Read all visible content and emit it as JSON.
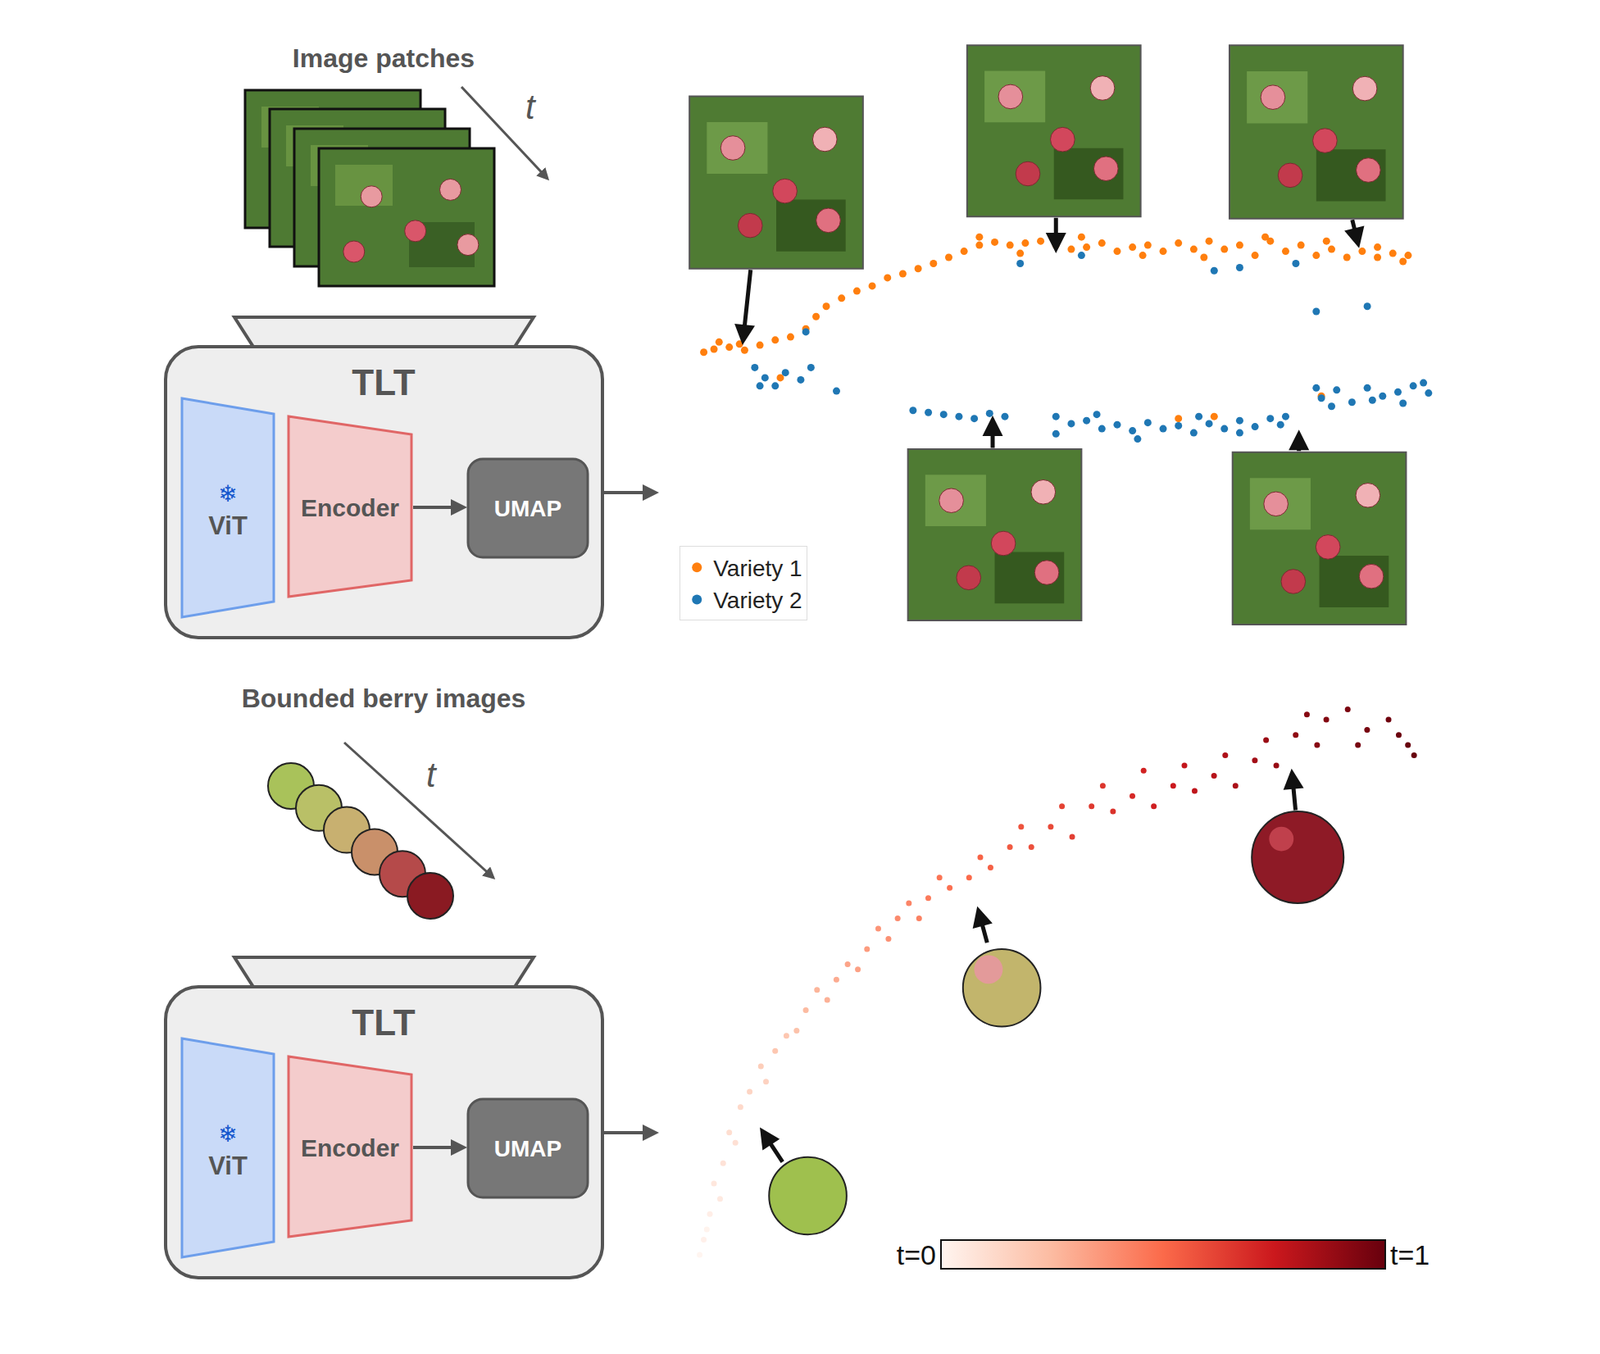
{
  "diagram": {
    "panels": [
      {
        "input": {
          "title": "Image patches",
          "time_label": "t"
        },
        "model": {
          "title": "TLT",
          "frozen_icon": "❄",
          "backbone": "ViT",
          "encoder": "Encoder",
          "projection": "UMAP"
        }
      },
      {
        "input": {
          "title": "Bounded berry images",
          "time_label": "t"
        },
        "model": {
          "title": "TLT",
          "frozen_icon": "❄",
          "backbone": "ViT",
          "encoder": "Encoder",
          "projection": "UMAP"
        }
      }
    ]
  },
  "chart_data": [
    {
      "type": "scatter",
      "tick_labels": false,
      "grid": false,
      "legend": "lower left",
      "xlim": [
        0,
        762
      ],
      "ylim": [
        0,
        585
      ],
      "series": [
        {
          "name": "Variety 1",
          "color": "#ff7f0e",
          "marker": "circle",
          "x": [
            35,
            45,
            60,
            75,
            90,
            105,
            120,
            135,
            145,
            155,
            170,
            185,
            200,
            215,
            230,
            245,
            260,
            275,
            290,
            305,
            320,
            335,
            350,
            365,
            380,
            395,
            410,
            425,
            440,
            455,
            470,
            485,
            500,
            515,
            530,
            545,
            560,
            575,
            590,
            605,
            620,
            635,
            650,
            665,
            680,
            695,
            710,
            725,
            305,
            345,
            405,
            465,
            525,
            585,
            645,
            695,
            720,
            110,
            500,
            535,
            640,
            50,
            70
          ],
          "y": [
            275,
            278,
            280,
            277,
            282,
            287,
            290,
            298,
            310,
            320,
            328,
            335,
            340,
            348,
            352,
            357,
            362,
            368,
            374,
            380,
            383,
            380,
            382,
            384,
            380,
            376,
            378,
            382,
            374,
            378,
            380,
            374,
            382,
            376,
            384,
            376,
            380,
            370,
            384,
            374,
            380,
            370,
            376,
            368,
            374,
            368,
            372,
            370,
            388,
            372,
            388,
            370,
            368,
            388,
            384,
            378,
            364,
            250,
            210,
            212,
            232,
            285,
            283
          ]
        },
        {
          "name": "Variety 2",
          "color": "#1f77b4",
          "marker": "circle",
          "x": [
            85,
            95,
            105,
            115,
            130,
            140,
            90,
            165,
            135,
            240,
            255,
            270,
            285,
            300,
            315,
            330,
            380,
            395,
            410,
            425,
            440,
            455,
            470,
            485,
            500,
            515,
            530,
            545,
            560,
            575,
            590,
            605,
            380,
            420,
            460,
            520,
            560,
            600,
            640,
            655,
            670,
            685,
            700,
            715,
            730,
            745,
            650,
            690,
            720,
            740,
            635,
            345,
            405,
            535,
            560,
            635,
            685,
            615
          ],
          "y": [
            260,
            250,
            242,
            255,
            248,
            260,
            242,
            237,
            295,
            218,
            216,
            214,
            212,
            210,
            215,
            212,
            212,
            205,
            208,
            200,
            204,
            198,
            206,
            200,
            203,
            196,
            205,
            200,
            208,
            202,
            210,
            212,
            195,
            214,
            190,
            212,
            196,
            204,
            230,
            238,
            226,
            240,
            232,
            236,
            242,
            235,
            222,
            228,
            225,
            245,
            240,
            362,
            370,
            355,
            358,
            315,
            320,
            362
          ]
        }
      ]
    },
    {
      "type": "scatter",
      "tick_labels": false,
      "grid": false,
      "xlim": [
        0,
        767
      ],
      "ylim": [
        0,
        586
      ],
      "color": "Reds",
      "marker": "circle",
      "x": [
        39,
        49,
        64,
        84,
        109,
        139,
        169,
        199,
        229,
        259,
        299,
        339,
        379,
        419,
        459,
        499,
        539,
        579,
        619,
        649,
        689,
        729,
        45,
        58,
        75,
        95,
        120,
        150,
        180,
        210,
        240,
        270,
        310,
        350,
        390,
        430,
        470,
        510,
        550,
        590,
        630,
        670,
        710,
        720,
        100,
        130,
        160,
        190,
        220,
        250,
        280,
        320,
        360,
        400,
        440,
        480,
        520,
        560,
        600,
        640,
        680,
        735,
        35,
        42,
        55,
        70
      ],
      "y": [
        35,
        90,
        140,
        180,
        220,
        260,
        290,
        320,
        350,
        370,
        390,
        420,
        440,
        460,
        470,
        480,
        490,
        505,
        530,
        545,
        535,
        520,
        60,
        110,
        165,
        205,
        235,
        280,
        305,
        340,
        365,
        390,
        410,
        440,
        460,
        480,
        495,
        500,
        510,
        525,
        550,
        555,
        545,
        530,
        190,
        240,
        270,
        300,
        330,
        350,
        380,
        400,
        420,
        430,
        455,
        460,
        475,
        480,
        500,
        520,
        520,
        510,
        20,
        45,
        75,
        130
      ],
      "t": [
        0.02,
        0.06,
        0.1,
        0.14,
        0.2,
        0.25,
        0.3,
        0.35,
        0.4,
        0.45,
        0.5,
        0.55,
        0.6,
        0.65,
        0.7,
        0.75,
        0.8,
        0.85,
        0.9,
        0.93,
        0.96,
        1.0,
        0.03,
        0.08,
        0.12,
        0.17,
        0.2,
        0.27,
        0.32,
        0.37,
        0.42,
        0.47,
        0.52,
        0.57,
        0.62,
        0.66,
        0.72,
        0.77,
        0.82,
        0.87,
        0.92,
        0.95,
        0.98,
        0.99,
        0.15,
        0.22,
        0.28,
        0.33,
        0.38,
        0.43,
        0.48,
        0.53,
        0.58,
        0.63,
        0.67,
        0.73,
        0.78,
        0.83,
        0.88,
        0.92,
        0.96,
        1.0,
        0.0,
        0.01,
        0.05,
        0.09
      ],
      "colorbar": {
        "range": [
          0,
          1
        ],
        "labels": [
          "t=0",
          "t=1"
        ]
      }
    }
  ]
}
